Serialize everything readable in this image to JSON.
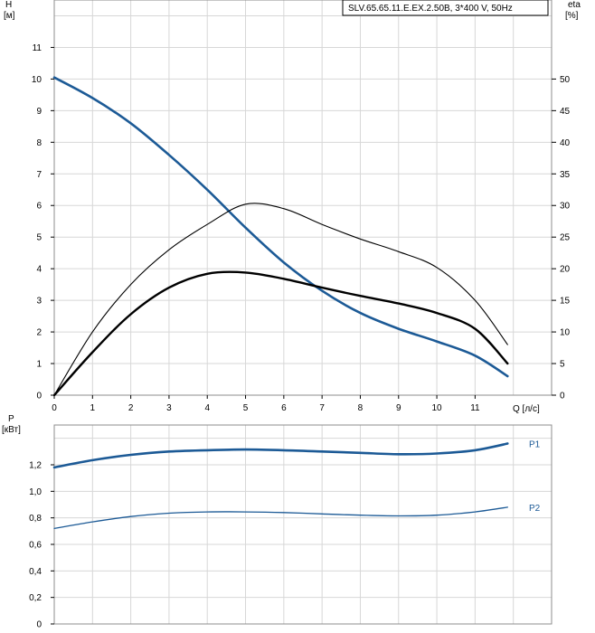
{
  "title": "SLV.65.65.11.E.EX.2.50B, 3*400 V, 50Hz",
  "colors": {
    "head": "#1c5a96",
    "power": "#1c5a96",
    "power_label": "#1c5a96",
    "efficiency": "#000000",
    "grid": "#d7d7d7"
  },
  "chart_data": [
    {
      "type": "line",
      "name": "head-efficiency",
      "xlabel": "Q [л/с]",
      "ylabel": "H",
      "yunit": "[м]",
      "y2label": "eta",
      "y2unit": "[%]",
      "xlim": [
        0,
        13
      ],
      "ylim": [
        0,
        12.5
      ],
      "y2lim": [
        0,
        62.5
      ],
      "grid": true,
      "xticks": [
        "0",
        "1",
        "2",
        "3",
        "4",
        "5",
        "6",
        "7",
        "8",
        "9",
        "10",
        "11"
      ],
      "yticks": [
        "0",
        "1",
        "2",
        "3",
        "4",
        "5",
        "6",
        "7",
        "8",
        "9",
        "10",
        "11"
      ],
      "y2ticks": [
        "0",
        "5",
        "10",
        "15",
        "20",
        "25",
        "30",
        "35",
        "40",
        "45",
        "50"
      ],
      "series": [
        {
          "axis": "left",
          "x": [
            0,
            1,
            2,
            3,
            4,
            5,
            6,
            7,
            8,
            9,
            10,
            11,
            11.85
          ],
          "values": [
            10.05,
            9.4,
            8.6,
            7.6,
            6.5,
            5.3,
            4.2,
            3.3,
            2.6,
            2.1,
            1.7,
            1.25,
            0.6
          ]
        },
        {
          "axis": "right",
          "x": [
            0,
            1,
            2,
            3,
            4,
            5,
            6,
            7,
            8,
            9,
            10,
            11,
            11.85
          ],
          "values": [
            0,
            10,
            17.5,
            23,
            27,
            30.2,
            29.5,
            27,
            24.7,
            22.7,
            20.2,
            15,
            8
          ]
        },
        {
          "axis": "right",
          "x": [
            0,
            1,
            2,
            3,
            4,
            5,
            6,
            7,
            8,
            9,
            10,
            11,
            11.85
          ],
          "values": [
            0,
            6.8,
            12.8,
            17,
            19.2,
            19.4,
            18.4,
            17,
            15.7,
            14.5,
            13,
            10.5,
            5
          ]
        }
      ]
    },
    {
      "type": "line",
      "name": "power",
      "ylabel": "P",
      "yunit": "[кВт]",
      "xlim": [
        0,
        13
      ],
      "ylim": [
        0,
        1.5
      ],
      "grid": true,
      "yticks": [
        "0",
        "0,2",
        "0,4",
        "0,6",
        "0,8",
        "1,0",
        "1,2"
      ],
      "series": [
        {
          "name": "P1",
          "x": [
            0,
            1,
            2,
            3,
            4,
            5,
            6,
            7,
            8,
            9,
            10,
            11,
            11.85
          ],
          "values": [
            1.18,
            1.235,
            1.275,
            1.3,
            1.31,
            1.315,
            1.31,
            1.3,
            1.29,
            1.28,
            1.285,
            1.31,
            1.36
          ]
        },
        {
          "name": "P2",
          "x": [
            0,
            1,
            2,
            3,
            4,
            5,
            6,
            7,
            8,
            9,
            10,
            11,
            11.85
          ],
          "values": [
            0.72,
            0.77,
            0.81,
            0.835,
            0.845,
            0.845,
            0.84,
            0.83,
            0.82,
            0.815,
            0.82,
            0.845,
            0.88
          ]
        }
      ]
    }
  ]
}
